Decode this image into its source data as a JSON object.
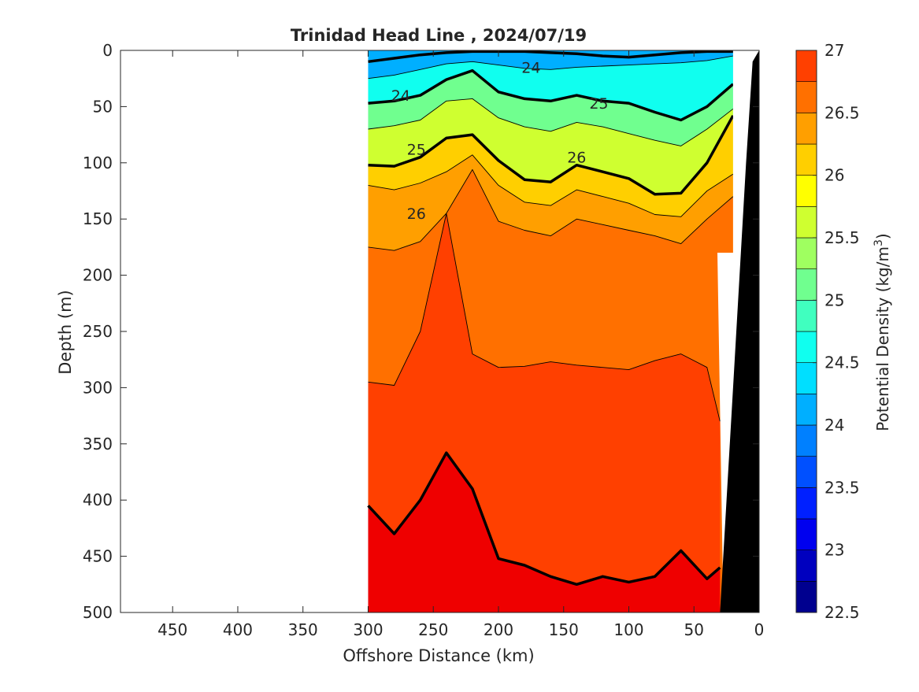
{
  "chart_data": {
    "type": "contourf",
    "title": "Trinidad Head Line , 2024/07/19",
    "xlabel": "Offshore Distance (km)",
    "ylabel": "Depth (m)",
    "xlim": [
      490,
      0
    ],
    "ylim": [
      500,
      0
    ],
    "x_reversed": true,
    "y_reversed": true,
    "xticks": [
      450,
      400,
      350,
      300,
      250,
      200,
      150,
      100,
      50,
      0
    ],
    "yticks": [
      0,
      50,
      100,
      150,
      200,
      250,
      300,
      350,
      400,
      450,
      500
    ],
    "data_extent_x": [
      300,
      20
    ],
    "colorbar": {
      "label": "Potential Density (kg/m",
      "label_superscript": "3",
      "label_suffix": ")",
      "range": [
        22.5,
        27
      ],
      "levels": [
        22.5,
        22.75,
        23,
        23.25,
        23.5,
        23.75,
        24,
        24.25,
        24.5,
        24.75,
        25,
        25.25,
        25.5,
        25.75,
        26,
        26.25,
        26.5,
        26.75,
        27
      ],
      "ticks": [
        22.5,
        23,
        23.5,
        24,
        24.5,
        25,
        25.5,
        26,
        26.5,
        27
      ],
      "tick_labels": [
        "22.5",
        "23",
        "23.5",
        "24",
        "24.5",
        "25",
        "25.5",
        "26",
        "26.5",
        "27"
      ],
      "colors": [
        "#00008f",
        "#0000bf",
        "#0000ef",
        "#0020ff",
        "#0050ff",
        "#0080ff",
        "#00afff",
        "#00dfff",
        "#10ffef",
        "#40ffbf",
        "#70ff8f",
        "#9fff60",
        "#cfff30",
        "#ffff00",
        "#ffcf00",
        "#ff9f00",
        "#ff7000",
        "#ff4000",
        "#ef0000"
      ]
    },
    "contours": [
      {
        "level": 24.0,
        "depth": [
          10,
          7,
          4,
          2,
          1,
          1,
          1,
          2,
          3,
          5,
          6,
          4,
          2,
          1,
          1
        ],
        "x": [
          300,
          280,
          260,
          240,
          220,
          200,
          180,
          160,
          140,
          120,
          100,
          80,
          60,
          40,
          20
        ]
      },
      {
        "level": 24.5,
        "depth": [
          25,
          22,
          17,
          12,
          10,
          13,
          16,
          17,
          15,
          14,
          13,
          12,
          11,
          9,
          5
        ],
        "x": [
          300,
          280,
          260,
          240,
          220,
          200,
          180,
          160,
          140,
          120,
          100,
          80,
          60,
          40,
          20
        ]
      },
      {
        "level": 25.0,
        "depth": [
          47,
          45,
          40,
          26,
          18,
          37,
          43,
          45,
          40,
          45,
          47,
          55,
          62,
          50,
          30
        ],
        "x": [
          300,
          280,
          260,
          240,
          220,
          200,
          180,
          160,
          140,
          120,
          100,
          80,
          60,
          40,
          20
        ]
      },
      {
        "level": 25.5,
        "depth": [
          70,
          67,
          62,
          45,
          43,
          60,
          68,
          72,
          64,
          68,
          74,
          80,
          85,
          70,
          52
        ],
        "x": [
          300,
          280,
          260,
          240,
          220,
          200,
          180,
          160,
          140,
          120,
          100,
          80,
          60,
          40,
          20
        ]
      },
      {
        "level": 26.0,
        "depth": [
          102,
          103,
          95,
          78,
          75,
          98,
          115,
          117,
          102,
          108,
          114,
          128,
          127,
          100,
          58
        ],
        "x": [
          300,
          280,
          260,
          240,
          220,
          200,
          180,
          160,
          140,
          120,
          100,
          80,
          60,
          40,
          20
        ]
      },
      {
        "level": 26.25,
        "depth": [
          120,
          124,
          118,
          108,
          93,
          120,
          135,
          138,
          124,
          130,
          136,
          146,
          148,
          125,
          110
        ],
        "x": [
          300,
          280,
          260,
          240,
          220,
          200,
          180,
          160,
          140,
          120,
          100,
          80,
          60,
          40,
          20
        ]
      },
      {
        "level": 26.5,
        "depth": [
          175,
          178,
          170,
          145,
          106,
          152,
          160,
          165,
          150,
          155,
          160,
          165,
          172,
          150,
          130
        ],
        "x": [
          300,
          280,
          260,
          240,
          220,
          200,
          180,
          160,
          140,
          120,
          100,
          80,
          60,
          40,
          20
        ]
      },
      {
        "level": 26.75,
        "depth": [
          295,
          298,
          250,
          145,
          270,
          282,
          281,
          277,
          280,
          282,
          284,
          276,
          270,
          282,
          330
        ],
        "x": [
          300,
          280,
          260,
          240,
          220,
          200,
          180,
          160,
          140,
          120,
          100,
          80,
          60,
          40,
          30
        ]
      },
      {
        "level": 27.0,
        "depth": [
          405,
          430,
          400,
          358,
          390,
          452,
          458,
          468,
          475,
          468,
          473,
          468,
          445,
          470,
          460
        ],
        "x": [
          300,
          280,
          260,
          240,
          220,
          200,
          180,
          160,
          140,
          120,
          100,
          80,
          60,
          40,
          30
        ]
      }
    ],
    "contour_labels": [
      {
        "text": "24",
        "x": 175,
        "y": 15
      },
      {
        "text": "24",
        "x": 275,
        "y": 40
      },
      {
        "text": "25",
        "x": 123,
        "y": 47
      },
      {
        "text": "25",
        "x": 263,
        "y": 88
      },
      {
        "text": "26",
        "x": 140,
        "y": 95
      },
      {
        "text": "26",
        "x": 263,
        "y": 145
      }
    ],
    "bathymetry": {
      "x": [
        30,
        20,
        10,
        5,
        0
      ],
      "depth": [
        500,
        300,
        100,
        10,
        0
      ]
    },
    "missing_near_shore": {
      "x": [
        20,
        30
      ],
      "depth": [
        180,
        500
      ]
    }
  }
}
